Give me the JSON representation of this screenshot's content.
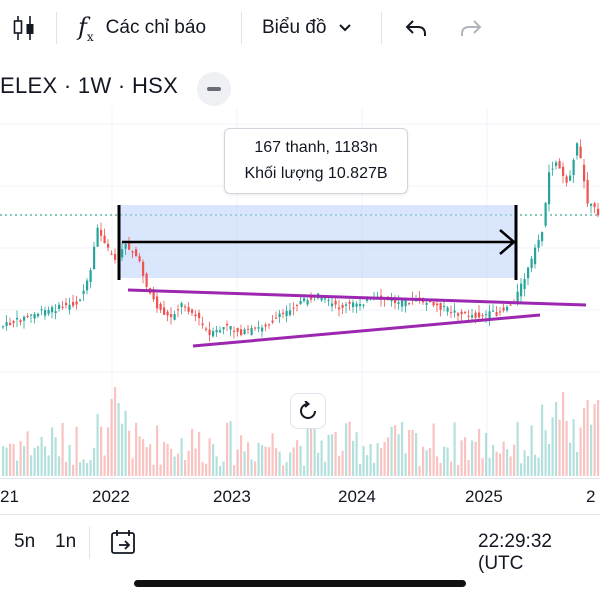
{
  "toolbar": {
    "indicators_label": "Các chỉ báo",
    "chart_type_label": "Biểu đồ",
    "icons": [
      "candles-icon",
      "function-icon",
      "chevron-down-icon",
      "undo-icon",
      "redo-icon"
    ]
  },
  "symbol": {
    "text": "ELEX · 1W · HSX"
  },
  "tooltip": {
    "line1": "167 thanh, 1183n",
    "line2": "Khối lượng 10.827B"
  },
  "x_axis": {
    "ticks": [
      "21",
      "2022",
      "2023",
      "2024",
      "2025",
      "2"
    ]
  },
  "bottom_bar": {
    "range_5n": "5n",
    "range_1n": "1n",
    "time": "22:29:32 (UTC"
  },
  "colors": {
    "up": "#26a69a",
    "down": "#ef5350",
    "range_fill": "#bbd2f7",
    "trendline": "#9c27b0"
  }
}
